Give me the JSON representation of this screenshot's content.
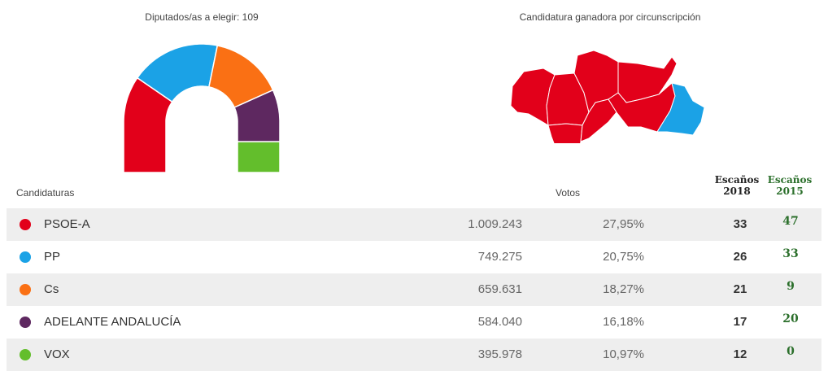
{
  "hemicycle_title": "Diputados/as a elegir: 109",
  "map_title": "Candidatura ganadora por circunscripción",
  "headers": {
    "candidaturas": "Candidaturas",
    "votos": "Votos",
    "escanos2018_l1": "Escaños",
    "escanos2018_l2": "2018",
    "escanos2015_l1": "Escaños",
    "escanos2015_l2": "2015"
  },
  "chart_data": {
    "type": "table",
    "total_seats": 109,
    "rows": [
      {
        "party": "PSOE-A",
        "color": "#e2001a",
        "votes": "1.009.243",
        "pct": "27,95%",
        "seats_2018": 33,
        "seats_2015": 47
      },
      {
        "party": "PP",
        "color": "#1ba2e6",
        "votes": "749.275",
        "pct": "20,75%",
        "seats_2018": 26,
        "seats_2015": 33
      },
      {
        "party": "Cs",
        "color": "#fa7014",
        "votes": "659.631",
        "pct": "18,27%",
        "seats_2018": 21,
        "seats_2015": 9
      },
      {
        "party": "ADELANTE ANDALUCÍA",
        "color": "#5e2860",
        "votes": "584.040",
        "pct": "16,18%",
        "seats_2018": 17,
        "seats_2015": 20
      },
      {
        "party": "VOX",
        "color": "#63be2c",
        "votes": "395.978",
        "pct": "10,97%",
        "seats_2018": 12,
        "seats_2015": 0
      }
    ],
    "map_winners": {
      "PSOE-A": 7,
      "PP": 1
    }
  }
}
